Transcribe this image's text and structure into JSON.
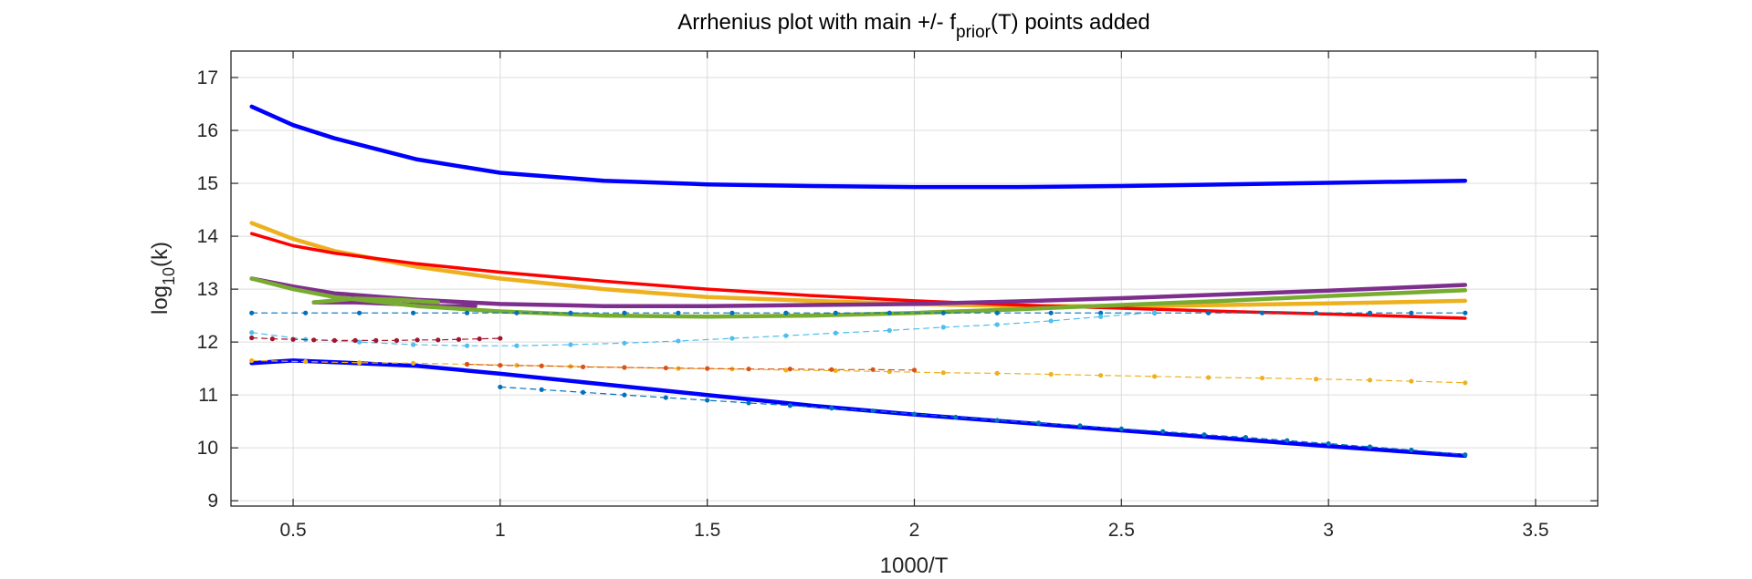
{
  "chart_data": {
    "type": "line",
    "title_main": "Arrhenius plot with main +/- f",
    "title_sub": "prior",
    "title_end": "(T) points added",
    "xlabel": "1000/T",
    "ylabel_main": "log",
    "ylabel_sub": "10",
    "ylabel_end": "(k)",
    "xlim": [
      0.35,
      3.65
    ],
    "ylim": [
      8.9,
      17.5
    ],
    "xticks": [
      0.5,
      1,
      1.5,
      2,
      2.5,
      3,
      3.5
    ],
    "xtick_labels": [
      "0.5",
      "1",
      "1.5",
      "2",
      "2.5",
      "3",
      "3.5"
    ],
    "yticks": [
      9,
      10,
      11,
      12,
      13,
      14,
      15,
      16,
      17
    ],
    "ytick_labels": [
      "9",
      "10",
      "11",
      "12",
      "13",
      "14",
      "15",
      "16",
      "17"
    ],
    "grid": true,
    "series": [
      {
        "color": "#0000ff",
        "width": 4.5,
        "style": "solid",
        "x": [
          0.4,
          0.5,
          0.6,
          0.8,
          1.0,
          1.25,
          1.5,
          1.75,
          2.0,
          2.25,
          2.5,
          2.75,
          3.0,
          3.33
        ],
        "y": [
          16.45,
          16.1,
          15.85,
          15.45,
          15.2,
          15.05,
          14.98,
          14.95,
          14.93,
          14.93,
          14.95,
          14.98,
          15.01,
          15.05
        ]
      },
      {
        "color": "#0000ff",
        "width": 4.5,
        "style": "solid",
        "x": [
          0.4,
          0.5,
          0.6,
          0.8,
          1.0,
          1.25,
          1.5,
          1.75,
          2.0,
          2.25,
          2.5,
          2.75,
          3.0,
          3.33
        ],
        "y": [
          11.6,
          11.65,
          11.62,
          11.55,
          11.4,
          11.2,
          11.0,
          10.8,
          10.63,
          10.48,
          10.33,
          10.18,
          10.03,
          9.85
        ]
      },
      {
        "color": "#edb120",
        "width": 4.5,
        "style": "solid",
        "x": [
          0.4,
          0.5,
          0.6,
          0.8,
          1.0,
          1.25,
          1.5,
          1.75,
          2.0,
          2.25,
          2.5,
          2.75,
          3.0,
          3.33
        ],
        "y": [
          14.25,
          13.95,
          13.72,
          13.42,
          13.2,
          13.0,
          12.85,
          12.78,
          12.72,
          12.68,
          12.68,
          12.7,
          12.73,
          12.78
        ]
      },
      {
        "color": "#ff0000",
        "width": 3.5,
        "style": "solid",
        "x": [
          0.4,
          0.5,
          0.6,
          0.8,
          1.0,
          1.25,
          1.5,
          1.75,
          2.0,
          2.25,
          2.5,
          2.75,
          3.0,
          3.33
        ],
        "y": [
          14.05,
          13.82,
          13.68,
          13.48,
          13.32,
          13.15,
          13.0,
          12.88,
          12.78,
          12.7,
          12.64,
          12.58,
          12.53,
          12.45
        ]
      },
      {
        "color": "#7e2f8e",
        "width": 4.5,
        "style": "solid",
        "x": [
          0.4,
          0.5,
          0.6,
          0.8,
          1.0,
          1.25,
          1.5,
          1.75,
          2.0,
          2.25,
          2.5,
          2.75,
          3.0,
          3.33
        ],
        "y": [
          13.2,
          13.05,
          12.92,
          12.8,
          12.72,
          12.68,
          12.68,
          12.7,
          12.72,
          12.77,
          12.83,
          12.9,
          12.97,
          13.08
        ]
      },
      {
        "color": "#7e2f8e",
        "width": 4.5,
        "style": "solid",
        "x": [
          0.55,
          0.65,
          0.75,
          0.85,
          0.94
        ],
        "y": [
          12.75,
          12.75,
          12.72,
          12.68,
          12.68
        ]
      },
      {
        "color": "#77ac30",
        "width": 4.5,
        "style": "solid",
        "x": [
          0.4,
          0.5,
          0.6,
          0.8,
          1.0,
          1.25,
          1.5,
          1.75,
          2.0,
          2.25,
          2.5,
          2.75,
          3.0,
          3.33
        ],
        "y": [
          13.2,
          13.0,
          12.85,
          12.68,
          12.58,
          12.5,
          12.48,
          12.5,
          12.55,
          12.62,
          12.7,
          12.78,
          12.87,
          12.98
        ]
      },
      {
        "color": "#77ac30",
        "width": 4.5,
        "style": "solid",
        "x": [
          0.55,
          0.65,
          0.75,
          0.85
        ],
        "y": [
          12.75,
          12.82,
          12.8,
          12.75
        ]
      },
      {
        "color": "#0072bd",
        "width": 1.2,
        "style": "dashed",
        "markers": true,
        "x": [
          0.4,
          0.53,
          0.66,
          0.79,
          0.92,
          1.04,
          1.17,
          1.3,
          1.43,
          1.56,
          1.69,
          1.81,
          1.94,
          2.07,
          2.2,
          2.33,
          2.45,
          2.58,
          2.71,
          2.84,
          2.97,
          3.1,
          3.2,
          3.33
        ],
        "y": [
          12.55,
          12.55,
          12.55,
          12.55,
          12.55,
          12.55,
          12.55,
          12.55,
          12.55,
          12.55,
          12.55,
          12.55,
          12.55,
          12.55,
          12.55,
          12.55,
          12.55,
          12.55,
          12.55,
          12.55,
          12.55,
          12.55,
          12.55,
          12.55
        ]
      },
      {
        "color": "#4dbeee",
        "width": 1.2,
        "style": "dashed",
        "markers": true,
        "x": [
          0.4,
          0.53,
          0.66,
          0.79,
          0.92,
          1.04,
          1.17,
          1.3,
          1.43,
          1.56,
          1.69,
          1.81,
          1.94,
          2.07,
          2.2,
          2.33,
          2.45,
          2.58
        ],
        "y": [
          12.18,
          12.05,
          12.0,
          11.95,
          11.93,
          11.93,
          11.95,
          11.98,
          12.02,
          12.07,
          12.12,
          12.17,
          12.22,
          12.28,
          12.33,
          12.4,
          12.48,
          12.56
        ]
      },
      {
        "color": "#edb120",
        "width": 1.2,
        "style": "dashed",
        "markers": true,
        "x": [
          0.4,
          0.53,
          0.66,
          0.79,
          0.92,
          1.04,
          1.17,
          1.3,
          1.43,
          1.56,
          1.69,
          1.81,
          1.94,
          2.07,
          2.2,
          2.33,
          2.45,
          2.58,
          2.71,
          2.84,
          2.97,
          3.1,
          3.2,
          3.33
        ],
        "y": [
          11.65,
          11.63,
          11.61,
          11.6,
          11.58,
          11.56,
          11.54,
          11.52,
          11.5,
          11.49,
          11.47,
          11.46,
          11.44,
          11.42,
          11.41,
          11.39,
          11.37,
          11.35,
          11.33,
          11.32,
          11.3,
          11.28,
          11.26,
          11.23
        ]
      },
      {
        "color": "#d95319",
        "width": 1.2,
        "style": "dashed",
        "markers": true,
        "x": [
          0.92,
          1.0,
          1.1,
          1.2,
          1.3,
          1.4,
          1.5,
          1.6,
          1.7,
          1.8,
          1.9,
          2.0
        ],
        "y": [
          11.58,
          11.56,
          11.55,
          11.53,
          11.52,
          11.51,
          11.5,
          11.49,
          11.49,
          11.48,
          11.48,
          11.47
        ]
      },
      {
        "color": "#a2142f",
        "width": 1.2,
        "style": "dashed",
        "markers": true,
        "x": [
          0.4,
          0.45,
          0.5,
          0.55,
          0.6,
          0.65,
          0.7,
          0.75,
          0.8,
          0.85,
          0.9,
          0.95,
          1.0
        ],
        "y": [
          12.08,
          12.06,
          12.05,
          12.04,
          12.03,
          12.03,
          12.03,
          12.03,
          12.04,
          12.04,
          12.05,
          12.06,
          12.07
        ]
      },
      {
        "color": "#0072bd",
        "width": 1.2,
        "style": "dashed",
        "markers": true,
        "x": [
          1.0,
          1.1,
          1.2,
          1.3,
          1.4,
          1.5,
          1.6,
          1.7,
          1.8,
          1.9,
          2.0,
          2.1,
          2.2,
          2.3,
          2.4,
          2.5,
          2.6,
          2.7,
          2.8,
          2.9,
          3.0,
          3.1,
          3.2,
          3.33
        ],
        "y": [
          11.15,
          11.1,
          11.05,
          11.0,
          10.95,
          10.9,
          10.85,
          10.8,
          10.75,
          10.7,
          10.64,
          10.58,
          10.52,
          10.47,
          10.42,
          10.36,
          10.31,
          10.25,
          10.2,
          10.14,
          10.08,
          10.02,
          9.96,
          9.87
        ]
      }
    ]
  }
}
